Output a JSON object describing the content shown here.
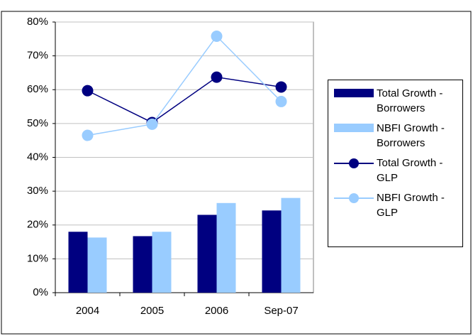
{
  "chart_data": {
    "type": "bar-line",
    "categories": [
      "2004",
      "2005",
      "2006",
      "Sep-07"
    ],
    "series": [
      {
        "name": "Total Growth - Borrowers",
        "type": "bar",
        "color": "#000080",
        "values": [
          18,
          16.7,
          23,
          24.3
        ]
      },
      {
        "name": "NBFI Growth - Borrowers",
        "type": "bar",
        "color": "#99ccff",
        "values": [
          16.3,
          18,
          26.5,
          28
        ]
      },
      {
        "name": "Total Growth - GLP",
        "type": "line",
        "color": "#000080",
        "values": [
          59.7,
          50.3,
          63.7,
          60.8
        ]
      },
      {
        "name": "NBFI Growth - GLP",
        "type": "line",
        "color": "#99ccff",
        "values": [
          46.5,
          49.8,
          75.8,
          56.5
        ]
      }
    ],
    "ylim": [
      0,
      80
    ],
    "yticks": [
      {
        "value": 0,
        "label": "0%"
      },
      {
        "value": 10,
        "label": "10%"
      },
      {
        "value": 20,
        "label": "20%"
      },
      {
        "value": 30,
        "label": "30%"
      },
      {
        "value": 40,
        "label": "40%"
      },
      {
        "value": 50,
        "label": "50%"
      },
      {
        "value": 60,
        "label": "60%"
      },
      {
        "value": 70,
        "label": "70%"
      },
      {
        "value": 80,
        "label": "80%"
      }
    ],
    "grid": true
  }
}
